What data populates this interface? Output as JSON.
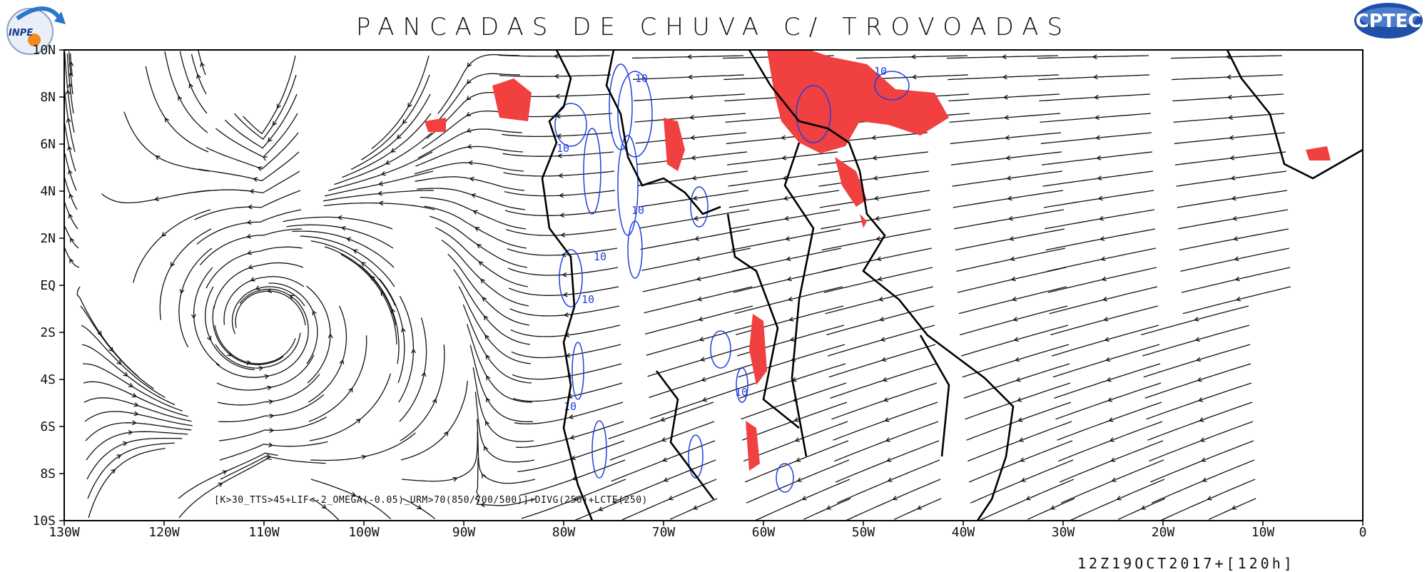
{
  "title": "PANCADAS DE CHUVA C/ TROVOADAS",
  "formula": "[K>30_TTS>45+LIF<-2_OMEGA(-0.05)_URM>70(850/700/500)]+DIVG(250)+LCTE(250)",
  "timestamp": "12Z19OCT2017+[120h]",
  "logos": {
    "left": "INPE",
    "right": "CPTEC"
  },
  "lat_ticks": [
    "10N",
    "8N",
    "6N",
    "4N",
    "2N",
    "EQ",
    "2S",
    "4S",
    "6S",
    "8S",
    "10S"
  ],
  "lon_ticks": [
    "130W",
    "120W",
    "110W",
    "100W",
    "90W",
    "80W",
    "70W",
    "60W",
    "50W",
    "40W",
    "30W",
    "20W",
    "10W",
    "0"
  ],
  "contour_label": "10",
  "colors": {
    "streamline": "#111111",
    "coastline": "#000000",
    "precip_area": "#f04040",
    "divergence_contour": "#2040e0"
  },
  "icons": {
    "left_logo": "inpe-logo-icon",
    "right_logo": "cptec-logo-icon"
  }
}
